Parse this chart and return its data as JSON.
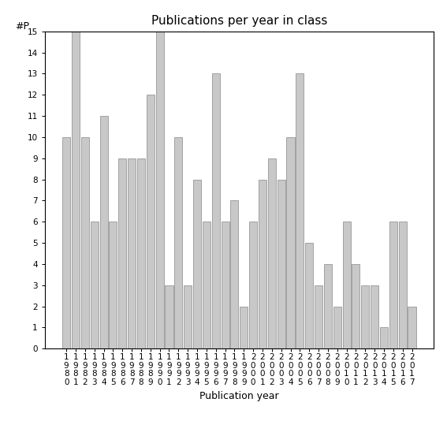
{
  "title": "Publications per year in class",
  "xlabel": "Publication year",
  "ylabel": "#P",
  "years": [
    "1980",
    "1981",
    "1982",
    "1983",
    "1984",
    "1985",
    "1986",
    "1987",
    "1988",
    "1989",
    "1990",
    "1991",
    "1992",
    "1993",
    "1994",
    "1995",
    "1996",
    "1997",
    "1998",
    "1999",
    "2000",
    "2001",
    "2002",
    "2003",
    "2004",
    "2005",
    "2006",
    "2007",
    "2008",
    "2009",
    "2010",
    "2011",
    "2012",
    "2013",
    "2014",
    "2015",
    "2016",
    "2017"
  ],
  "values": [
    10,
    15,
    10,
    6,
    11,
    6,
    9,
    9,
    9,
    12,
    15,
    3,
    10,
    3,
    8,
    6,
    13,
    6,
    7,
    2,
    6,
    8,
    9,
    8,
    10,
    13,
    5,
    3,
    4,
    2,
    6,
    4,
    3,
    3,
    1,
    6,
    6,
    2
  ],
  "bar_color": "#c8c8c8",
  "bar_edge_color": "#888888",
  "ylim": [
    0,
    15
  ],
  "yticks": [
    0,
    1,
    2,
    3,
    4,
    5,
    6,
    7,
    8,
    9,
    10,
    11,
    12,
    13,
    14,
    15
  ],
  "title_fontsize": 11,
  "label_fontsize": 9,
  "tick_fontsize": 7.5,
  "background_color": "#ffffff"
}
